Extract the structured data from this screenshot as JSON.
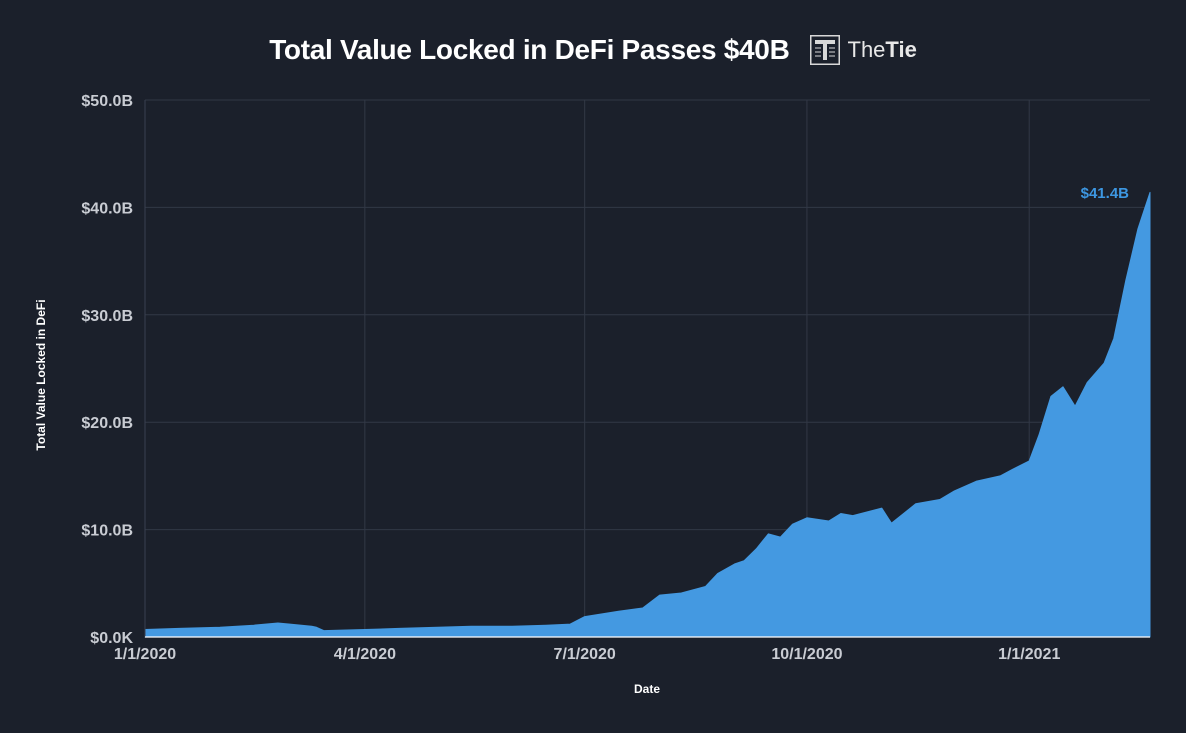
{
  "brand": {
    "prefix": "The",
    "suffix": "Tie"
  },
  "chart_data": {
    "type": "area",
    "title": "Total Value Locked in DeFi Passes $40B",
    "xlabel": "Date",
    "ylabel": "Total Value Locked in DeFi",
    "ylim": [
      0,
      50
    ],
    "xlim": [
      "2020-01-01",
      "2021-02-20"
    ],
    "y_unit": "$B",
    "y_ticks": [
      "$0.0K",
      "$10.0B",
      "$20.0B",
      "$30.0B",
      "$40.0B",
      "$50.0B"
    ],
    "x_ticks": [
      {
        "label": "1/1/2020",
        "date": "2020-01-01"
      },
      {
        "label": "4/1/2020",
        "date": "2020-04-01"
      },
      {
        "label": "7/1/2020",
        "date": "2020-07-01"
      },
      {
        "label": "10/1/2020",
        "date": "2020-10-01"
      },
      {
        "label": "1/1/2021",
        "date": "2021-01-01"
      }
    ],
    "grid": true,
    "series_color": "#4499e1",
    "annotation": {
      "label": "$41.4B",
      "date": "2021-02-20",
      "value": 41.4
    },
    "series": [
      {
        "x": [
          "2020-01-01",
          "2020-01-15",
          "2020-02-01",
          "2020-02-15",
          "2020-02-25",
          "2020-03-01",
          "2020-03-10",
          "2020-03-12",
          "2020-03-15",
          "2020-04-01",
          "2020-04-15",
          "2020-05-01",
          "2020-05-15",
          "2020-06-01",
          "2020-06-15",
          "2020-06-25",
          "2020-07-01",
          "2020-07-15",
          "2020-07-25",
          "2020-08-01",
          "2020-08-10",
          "2020-08-20",
          "2020-08-25",
          "2020-09-01",
          "2020-09-05",
          "2020-09-10",
          "2020-09-15",
          "2020-09-20",
          "2020-09-25",
          "2020-10-01",
          "2020-10-10",
          "2020-10-15",
          "2020-10-20",
          "2020-11-01",
          "2020-11-05",
          "2020-11-15",
          "2020-11-25",
          "2020-12-01",
          "2020-12-10",
          "2020-12-20",
          "2020-12-25",
          "2021-01-01",
          "2021-01-05",
          "2021-01-10",
          "2021-01-15",
          "2021-01-20",
          "2021-01-25",
          "2021-02-01",
          "2021-02-05",
          "2021-02-10",
          "2021-02-15",
          "2021-02-20"
        ],
        "values": [
          0.7,
          0.8,
          0.9,
          1.1,
          1.3,
          1.2,
          1.0,
          0.9,
          0.6,
          0.7,
          0.8,
          0.9,
          1.0,
          1.0,
          1.1,
          1.2,
          1.9,
          2.4,
          2.7,
          3.9,
          4.1,
          4.7,
          5.9,
          6.8,
          7.1,
          8.2,
          9.6,
          9.3,
          10.5,
          11.1,
          10.8,
          11.5,
          11.3,
          12.0,
          10.6,
          12.4,
          12.8,
          13.6,
          14.5,
          15.0,
          15.6,
          16.4,
          18.8,
          22.4,
          23.3,
          21.5,
          23.7,
          25.5,
          27.8,
          33.2,
          38.0,
          41.4
        ]
      }
    ]
  }
}
